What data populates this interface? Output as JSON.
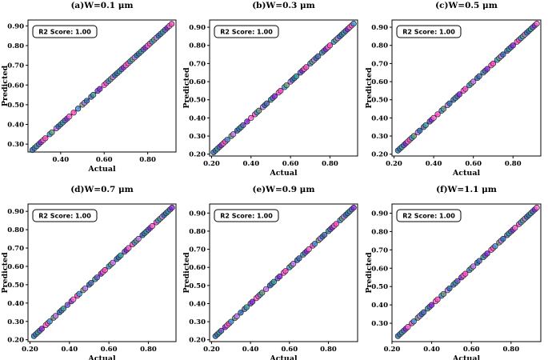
{
  "figure": {
    "colors": {
      "line": "#ff00ff",
      "point_palette": [
        "#1f77b4",
        "#4a6fb8",
        "#2ca7a0",
        "#6a5acd",
        "#8a2be2",
        "#ff6ad5",
        "#ff4fc3",
        "#3a9ad9",
        "#66a37a",
        "#c77dff"
      ],
      "point_edge": "#222222",
      "axis": "#000000"
    }
  },
  "chart_data": [
    {
      "type": "scatter",
      "title": "(a)W=0.1  μm",
      "xlabel": "Actual",
      "ylabel": "Predicted",
      "xlim": [
        0.25,
        0.93
      ],
      "ylim": [
        0.26,
        0.93
      ],
      "xticks": [
        0.4,
        0.6,
        0.8
      ],
      "xtick_labels": [
        "0.40",
        "0.60",
        "0.80"
      ],
      "yticks": [
        0.3,
        0.4,
        0.5,
        0.6,
        0.7,
        0.8,
        0.9
      ],
      "ytick_labels": [
        "0.30",
        "0.40",
        "0.50",
        "0.60",
        "0.70",
        "0.80",
        "0.90"
      ],
      "annotation": "R2 Score: 1.00",
      "line": [
        [
          0.27,
          0.27
        ],
        [
          0.91,
          0.91
        ]
      ],
      "x": [
        0.27,
        0.28,
        0.29,
        0.3,
        0.31,
        0.32,
        0.33,
        0.35,
        0.36,
        0.38,
        0.39,
        0.4,
        0.41,
        0.42,
        0.43,
        0.44,
        0.46,
        0.48,
        0.5,
        0.51,
        0.52,
        0.54,
        0.55,
        0.57,
        0.58,
        0.6,
        0.61,
        0.62,
        0.63,
        0.64,
        0.65,
        0.66,
        0.67,
        0.68,
        0.69,
        0.7,
        0.71,
        0.72,
        0.73,
        0.74,
        0.75,
        0.76,
        0.77,
        0.78,
        0.79,
        0.8,
        0.81,
        0.82,
        0.83,
        0.84,
        0.85,
        0.86,
        0.87,
        0.88,
        0.89,
        0.9,
        0.91
      ],
      "y": [
        0.27,
        0.28,
        0.29,
        0.3,
        0.31,
        0.32,
        0.33,
        0.35,
        0.36,
        0.38,
        0.39,
        0.4,
        0.41,
        0.42,
        0.43,
        0.44,
        0.46,
        0.48,
        0.5,
        0.51,
        0.52,
        0.54,
        0.55,
        0.57,
        0.58,
        0.6,
        0.61,
        0.62,
        0.63,
        0.64,
        0.65,
        0.66,
        0.67,
        0.68,
        0.69,
        0.7,
        0.71,
        0.72,
        0.73,
        0.74,
        0.75,
        0.76,
        0.77,
        0.78,
        0.79,
        0.8,
        0.81,
        0.82,
        0.83,
        0.84,
        0.85,
        0.86,
        0.87,
        0.88,
        0.89,
        0.9,
        0.91
      ]
    },
    {
      "type": "scatter",
      "title": "(b)W=0.3  μm",
      "xlabel": "Actual",
      "ylabel": "Predicted",
      "xlim": [
        0.19,
        0.94
      ],
      "ylim": [
        0.19,
        0.94
      ],
      "xticks": [
        0.2,
        0.4,
        0.6,
        0.8
      ],
      "xtick_labels": [
        "0.20",
        "0.40",
        "0.60",
        "0.80"
      ],
      "yticks": [
        0.2,
        0.3,
        0.4,
        0.5,
        0.6,
        0.7,
        0.8,
        0.9
      ],
      "ytick_labels": [
        "0.20",
        "0.30",
        "0.40",
        "0.50",
        "0.60",
        "0.70",
        "0.80",
        "0.90"
      ],
      "annotation": "R2 Score: 1.00",
      "line": [
        [
          0.21,
          0.21
        ],
        [
          0.92,
          0.92
        ]
      ],
      "x": [
        0.21,
        0.22,
        0.23,
        0.24,
        0.25,
        0.26,
        0.27,
        0.28,
        0.3,
        0.31,
        0.33,
        0.34,
        0.35,
        0.36,
        0.38,
        0.4,
        0.42,
        0.43,
        0.44,
        0.46,
        0.47,
        0.48,
        0.5,
        0.51,
        0.52,
        0.54,
        0.55,
        0.57,
        0.58,
        0.6,
        0.61,
        0.62,
        0.63,
        0.65,
        0.66,
        0.67,
        0.68,
        0.7,
        0.71,
        0.72,
        0.73,
        0.74,
        0.76,
        0.77,
        0.78,
        0.79,
        0.8,
        0.82,
        0.83,
        0.84,
        0.85,
        0.86,
        0.87,
        0.88,
        0.89,
        0.9,
        0.91,
        0.92
      ],
      "y": [
        0.21,
        0.22,
        0.23,
        0.24,
        0.25,
        0.26,
        0.27,
        0.28,
        0.3,
        0.31,
        0.33,
        0.34,
        0.35,
        0.36,
        0.38,
        0.4,
        0.42,
        0.43,
        0.44,
        0.46,
        0.47,
        0.48,
        0.5,
        0.51,
        0.52,
        0.54,
        0.55,
        0.57,
        0.58,
        0.6,
        0.61,
        0.62,
        0.63,
        0.65,
        0.66,
        0.67,
        0.68,
        0.7,
        0.71,
        0.72,
        0.73,
        0.74,
        0.76,
        0.77,
        0.78,
        0.79,
        0.8,
        0.82,
        0.83,
        0.84,
        0.85,
        0.86,
        0.87,
        0.88,
        0.89,
        0.9,
        0.91,
        0.92
      ]
    },
    {
      "type": "scatter",
      "title": "(c)W=0.5  μm",
      "xlabel": "Actual",
      "ylabel": "Predicted",
      "xlim": [
        0.19,
        0.94
      ],
      "ylim": [
        0.19,
        0.94
      ],
      "xticks": [
        0.2,
        0.4,
        0.6,
        0.8
      ],
      "xtick_labels": [
        "0.20",
        "0.40",
        "0.60",
        "0.80"
      ],
      "yticks": [
        0.2,
        0.3,
        0.4,
        0.5,
        0.6,
        0.7,
        0.8,
        0.9
      ],
      "ytick_labels": [
        "0.20",
        "0.30",
        "0.40",
        "0.50",
        "0.60",
        "0.70",
        "0.80",
        "0.90"
      ],
      "annotation": "R2 Score: 1.00",
      "line": [
        [
          0.22,
          0.22
        ],
        [
          0.92,
          0.92
        ]
      ],
      "x": [
        0.22,
        0.23,
        0.24,
        0.25,
        0.26,
        0.27,
        0.28,
        0.29,
        0.3,
        0.32,
        0.33,
        0.35,
        0.36,
        0.38,
        0.39,
        0.4,
        0.42,
        0.44,
        0.45,
        0.47,
        0.48,
        0.5,
        0.51,
        0.52,
        0.53,
        0.55,
        0.56,
        0.58,
        0.59,
        0.6,
        0.62,
        0.63,
        0.65,
        0.66,
        0.67,
        0.69,
        0.7,
        0.72,
        0.73,
        0.74,
        0.75,
        0.77,
        0.78,
        0.79,
        0.8,
        0.82,
        0.83,
        0.84,
        0.85,
        0.86,
        0.87,
        0.88,
        0.89,
        0.9,
        0.91,
        0.92
      ],
      "y": [
        0.22,
        0.23,
        0.24,
        0.25,
        0.26,
        0.27,
        0.28,
        0.29,
        0.3,
        0.32,
        0.33,
        0.35,
        0.36,
        0.38,
        0.39,
        0.4,
        0.42,
        0.44,
        0.45,
        0.47,
        0.48,
        0.5,
        0.51,
        0.52,
        0.53,
        0.55,
        0.56,
        0.58,
        0.59,
        0.6,
        0.62,
        0.63,
        0.65,
        0.66,
        0.67,
        0.69,
        0.7,
        0.72,
        0.73,
        0.74,
        0.75,
        0.77,
        0.78,
        0.79,
        0.8,
        0.82,
        0.83,
        0.84,
        0.85,
        0.86,
        0.87,
        0.88,
        0.89,
        0.9,
        0.91,
        0.92
      ]
    },
    {
      "type": "scatter",
      "title": "(d)W=0.7  μm",
      "xlabel": "Actual",
      "ylabel": "Predicted",
      "xlim": [
        0.19,
        0.94
      ],
      "ylim": [
        0.19,
        0.94
      ],
      "xticks": [
        0.2,
        0.4,
        0.6,
        0.8
      ],
      "xtick_labels": [
        "0.20",
        "0.40",
        "0.60",
        "0.80"
      ],
      "yticks": [
        0.2,
        0.3,
        0.4,
        0.5,
        0.6,
        0.7,
        0.8,
        0.9
      ],
      "ytick_labels": [
        "0.20",
        "0.30",
        "0.40",
        "0.50",
        "0.60",
        "0.70",
        "0.80",
        "0.90"
      ],
      "annotation": "R2 Score: 1.00",
      "line": [
        [
          0.22,
          0.22
        ],
        [
          0.92,
          0.92
        ]
      ],
      "x": [
        0.22,
        0.23,
        0.24,
        0.25,
        0.26,
        0.28,
        0.29,
        0.3,
        0.32,
        0.33,
        0.35,
        0.36,
        0.37,
        0.39,
        0.41,
        0.42,
        0.44,
        0.45,
        0.47,
        0.48,
        0.5,
        0.51,
        0.53,
        0.54,
        0.56,
        0.57,
        0.58,
        0.6,
        0.61,
        0.62,
        0.64,
        0.65,
        0.66,
        0.68,
        0.69,
        0.7,
        0.72,
        0.73,
        0.74,
        0.75,
        0.77,
        0.78,
        0.79,
        0.8,
        0.81,
        0.82,
        0.84,
        0.85,
        0.86,
        0.87,
        0.88,
        0.89,
        0.9,
        0.91,
        0.92
      ],
      "y": [
        0.22,
        0.23,
        0.24,
        0.25,
        0.26,
        0.28,
        0.29,
        0.3,
        0.32,
        0.33,
        0.35,
        0.36,
        0.37,
        0.39,
        0.41,
        0.42,
        0.44,
        0.45,
        0.47,
        0.48,
        0.5,
        0.51,
        0.53,
        0.54,
        0.56,
        0.57,
        0.58,
        0.6,
        0.61,
        0.62,
        0.64,
        0.65,
        0.66,
        0.68,
        0.69,
        0.7,
        0.72,
        0.73,
        0.74,
        0.75,
        0.77,
        0.78,
        0.79,
        0.8,
        0.81,
        0.82,
        0.84,
        0.85,
        0.86,
        0.87,
        0.88,
        0.89,
        0.9,
        0.91,
        0.92
      ]
    },
    {
      "type": "scatter",
      "title": "(e)W=0.9  μm",
      "xlabel": "Actual",
      "ylabel": "Predicted",
      "xlim": [
        0.19,
        0.95
      ],
      "ylim": [
        0.19,
        0.95
      ],
      "xticks": [
        0.2,
        0.4,
        0.6,
        0.8
      ],
      "xtick_labels": [
        "0.20",
        "0.40",
        "0.60",
        "0.80"
      ],
      "yticks": [
        0.2,
        0.3,
        0.4,
        0.5,
        0.6,
        0.7,
        0.8,
        0.9
      ],
      "ytick_labels": [
        "0.20",
        "0.30",
        "0.40",
        "0.50",
        "0.60",
        "0.70",
        "0.80",
        "0.90"
      ],
      "annotation": "R2 Score: 1.00",
      "line": [
        [
          0.22,
          0.22
        ],
        [
          0.93,
          0.93
        ]
      ],
      "x": [
        0.22,
        0.23,
        0.24,
        0.25,
        0.27,
        0.28,
        0.29,
        0.3,
        0.32,
        0.33,
        0.35,
        0.37,
        0.38,
        0.4,
        0.41,
        0.43,
        0.44,
        0.45,
        0.46,
        0.48,
        0.5,
        0.51,
        0.52,
        0.54,
        0.55,
        0.57,
        0.58,
        0.6,
        0.61,
        0.62,
        0.64,
        0.65,
        0.67,
        0.68,
        0.69,
        0.7,
        0.72,
        0.73,
        0.75,
        0.76,
        0.77,
        0.78,
        0.8,
        0.81,
        0.82,
        0.83,
        0.84,
        0.86,
        0.87,
        0.88,
        0.89,
        0.9,
        0.91,
        0.92,
        0.93
      ],
      "y": [
        0.22,
        0.23,
        0.24,
        0.25,
        0.27,
        0.28,
        0.29,
        0.3,
        0.32,
        0.33,
        0.35,
        0.37,
        0.38,
        0.4,
        0.41,
        0.43,
        0.44,
        0.45,
        0.46,
        0.48,
        0.5,
        0.51,
        0.52,
        0.54,
        0.55,
        0.57,
        0.58,
        0.6,
        0.61,
        0.62,
        0.64,
        0.65,
        0.67,
        0.68,
        0.69,
        0.7,
        0.72,
        0.73,
        0.75,
        0.76,
        0.77,
        0.78,
        0.8,
        0.81,
        0.82,
        0.83,
        0.84,
        0.86,
        0.87,
        0.88,
        0.89,
        0.9,
        0.91,
        0.92,
        0.93
      ]
    },
    {
      "type": "scatter",
      "title": "(f)W=1.1  μm",
      "xlabel": "Actual",
      "ylabel": "Predicted",
      "xlim": [
        0.2,
        0.95
      ],
      "ylim": [
        0.2,
        0.95
      ],
      "xticks": [
        0.2,
        0.4,
        0.6,
        0.8
      ],
      "xtick_labels": [
        "0.20",
        "0.40",
        "0.60",
        "0.80"
      ],
      "yticks": [
        0.3,
        0.4,
        0.5,
        0.6,
        0.7,
        0.8,
        0.9
      ],
      "ytick_labels": [
        "0.30",
        "0.40",
        "0.50",
        "0.60",
        "0.70",
        "0.80",
        "0.90"
      ],
      "annotation": "R2 Score: 1.00",
      "line": [
        [
          0.23,
          0.23
        ],
        [
          0.93,
          0.93
        ]
      ],
      "x": [
        0.23,
        0.24,
        0.25,
        0.26,
        0.27,
        0.28,
        0.3,
        0.31,
        0.33,
        0.34,
        0.35,
        0.36,
        0.38,
        0.39,
        0.4,
        0.42,
        0.43,
        0.45,
        0.46,
        0.48,
        0.49,
        0.51,
        0.52,
        0.53,
        0.55,
        0.56,
        0.57,
        0.59,
        0.6,
        0.61,
        0.63,
        0.64,
        0.66,
        0.67,
        0.68,
        0.7,
        0.71,
        0.72,
        0.74,
        0.75,
        0.76,
        0.78,
        0.79,
        0.8,
        0.81,
        0.82,
        0.84,
        0.85,
        0.86,
        0.87,
        0.88,
        0.89,
        0.9,
        0.91,
        0.92,
        0.93
      ],
      "y": [
        0.23,
        0.24,
        0.25,
        0.26,
        0.27,
        0.28,
        0.3,
        0.31,
        0.33,
        0.34,
        0.35,
        0.36,
        0.38,
        0.39,
        0.4,
        0.42,
        0.43,
        0.45,
        0.46,
        0.48,
        0.49,
        0.51,
        0.52,
        0.53,
        0.55,
        0.56,
        0.57,
        0.59,
        0.6,
        0.61,
        0.63,
        0.64,
        0.66,
        0.67,
        0.68,
        0.7,
        0.71,
        0.72,
        0.74,
        0.75,
        0.76,
        0.78,
        0.79,
        0.8,
        0.81,
        0.82,
        0.84,
        0.85,
        0.86,
        0.87,
        0.88,
        0.89,
        0.9,
        0.91,
        0.92,
        0.93
      ]
    }
  ]
}
